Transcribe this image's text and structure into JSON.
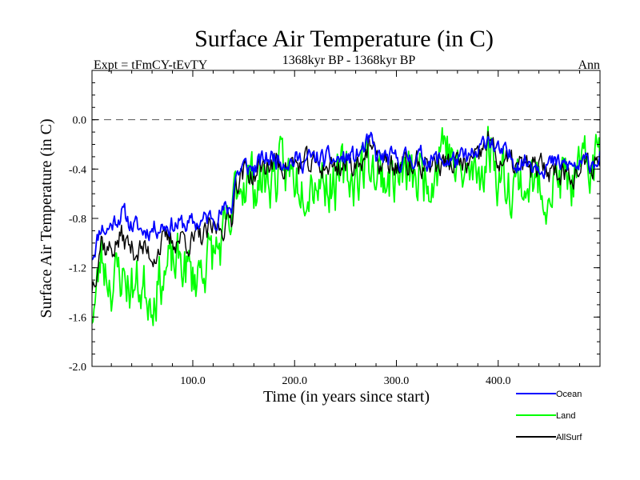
{
  "chart_data": {
    "type": "line",
    "title": "Surface Air Temperature (in C)",
    "subtitle_left": "Expt = tFmCY-tEvTY",
    "subtitle_center": "1368kyr BP - 1368kyr BP",
    "subtitle_right": "Ann",
    "xlabel": "Time (in years since start)",
    "ylabel": "Surface Air Temperature (in C)",
    "xlim": [
      1,
      500
    ],
    "ylim": [
      -2.0,
      0.4
    ],
    "xticks": [
      100,
      200,
      300,
      400
    ],
    "xtick_labels": [
      "100.0",
      "200.0",
      "300.0",
      "400.0"
    ],
    "yticks": [
      -2.0,
      -1.6,
      -1.2,
      -0.8,
      -0.4,
      0.0
    ],
    "ytick_labels": [
      "-2.0",
      "-1.6",
      "-1.2",
      "-0.8",
      "-0.4",
      "0.0"
    ],
    "reference_line": 0.0,
    "legend_position": "bottom-right",
    "series": [
      {
        "name": "Ocean",
        "color": "#0000ff",
        "anchors_x": [
          1,
          5,
          10,
          15,
          20,
          30,
          40,
          50,
          60,
          70,
          80,
          90,
          100,
          110,
          120,
          130,
          138,
          142,
          150,
          160,
          170,
          180,
          200,
          220,
          240,
          260,
          275,
          280,
          300,
          320,
          340,
          360,
          380,
          390,
          400,
          420,
          440,
          460,
          480,
          500
        ],
        "anchors_y": [
          -1.1,
          -1.0,
          -0.85,
          -0.9,
          -0.85,
          -0.75,
          -0.85,
          -0.9,
          -0.88,
          -0.85,
          -0.85,
          -0.85,
          -0.85,
          -0.82,
          -0.78,
          -0.75,
          -0.7,
          -0.45,
          -0.38,
          -0.4,
          -0.32,
          -0.3,
          -0.33,
          -0.32,
          -0.33,
          -0.3,
          -0.18,
          -0.3,
          -0.33,
          -0.3,
          -0.33,
          -0.33,
          -0.3,
          -0.12,
          -0.27,
          -0.33,
          -0.35,
          -0.37,
          -0.38,
          -0.3
        ],
        "noise": 0.07,
        "seed": 11
      },
      {
        "name": "Land",
        "color": "#00ff00",
        "anchors_x": [
          1,
          5,
          10,
          15,
          20,
          30,
          40,
          50,
          60,
          70,
          80,
          90,
          100,
          110,
          120,
          130,
          138,
          142,
          150,
          160,
          170,
          180,
          200,
          220,
          240,
          260,
          275,
          280,
          300,
          320,
          340,
          345,
          360,
          380,
          393,
          400,
          420,
          440,
          460,
          480,
          500
        ],
        "anchors_y": [
          -1.55,
          -1.45,
          -1.1,
          -1.2,
          -1.3,
          -1.25,
          -1.35,
          -1.35,
          -1.4,
          -1.25,
          -1.2,
          -1.15,
          -1.3,
          -1.15,
          -1.1,
          -1.0,
          -0.9,
          -0.55,
          -0.45,
          -0.5,
          -0.5,
          -0.45,
          -0.45,
          -0.45,
          -0.5,
          -0.45,
          -0.3,
          -0.45,
          -0.45,
          -0.5,
          -0.35,
          -0.1,
          -0.45,
          -0.45,
          -0.2,
          -0.45,
          -0.5,
          -0.55,
          -0.5,
          -0.5,
          -0.25
        ],
        "noise": 0.2,
        "seed": 23
      },
      {
        "name": "AllSurf",
        "color": "#000000",
        "anchors_x": [
          1,
          5,
          10,
          15,
          20,
          30,
          40,
          50,
          60,
          70,
          80,
          90,
          100,
          110,
          120,
          130,
          138,
          142,
          150,
          160,
          170,
          180,
          200,
          220,
          240,
          260,
          275,
          280,
          300,
          320,
          340,
          360,
          380,
          390,
          400,
          420,
          440,
          460,
          480,
          500
        ],
        "anchors_y": [
          -1.35,
          -1.2,
          -0.95,
          -1.05,
          -1.05,
          -0.95,
          -1.05,
          -1.05,
          -1.1,
          -1.0,
          -0.98,
          -0.95,
          -1.0,
          -0.95,
          -0.9,
          -0.85,
          -0.8,
          -0.5,
          -0.42,
          -0.45,
          -0.38,
          -0.35,
          -0.37,
          -0.37,
          -0.38,
          -0.35,
          -0.22,
          -0.35,
          -0.38,
          -0.37,
          -0.35,
          -0.37,
          -0.35,
          -0.15,
          -0.33,
          -0.38,
          -0.4,
          -0.4,
          -0.42,
          -0.33
        ],
        "noise": 0.09,
        "seed": 37
      }
    ]
  }
}
